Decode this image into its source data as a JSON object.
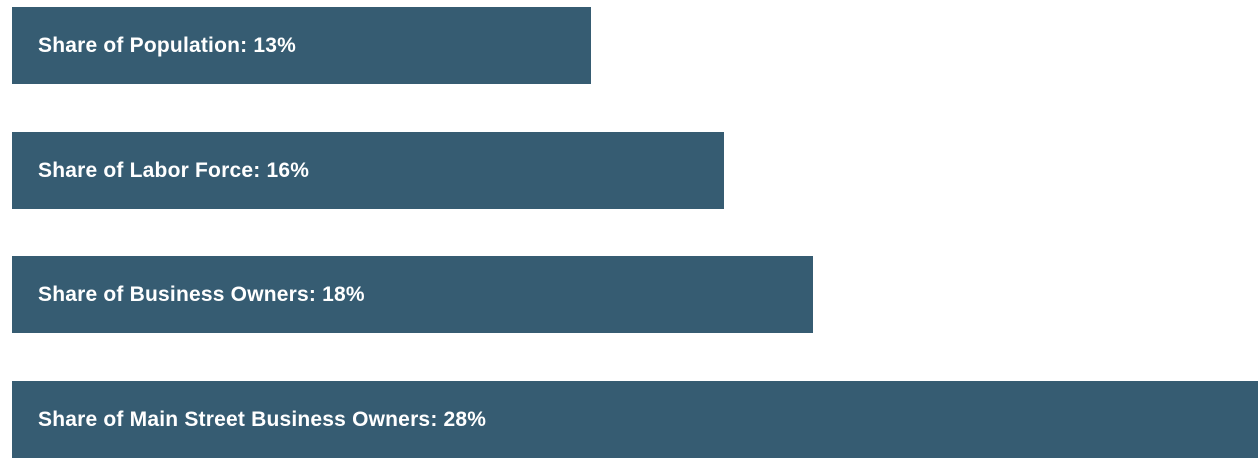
{
  "chart_data": {
    "type": "bar",
    "orientation": "horizontal",
    "categories": [
      "Share of Population",
      "Share of Labor Force",
      "Share of Business Owners",
      "Share of Main Street Business Owners"
    ],
    "values": [
      13,
      16,
      18,
      28
    ],
    "unit": "%",
    "labels": [
      "Share of Population: 13%",
      "Share of Labor Force: 16%",
      "Share of Business Owners: 18%",
      "Share of Main Street Business Owners: 28%"
    ],
    "xlim": [
      0,
      28
    ],
    "grid": false,
    "legend": "none",
    "bar_color": "#365c72",
    "label_color": "#ffffff"
  }
}
